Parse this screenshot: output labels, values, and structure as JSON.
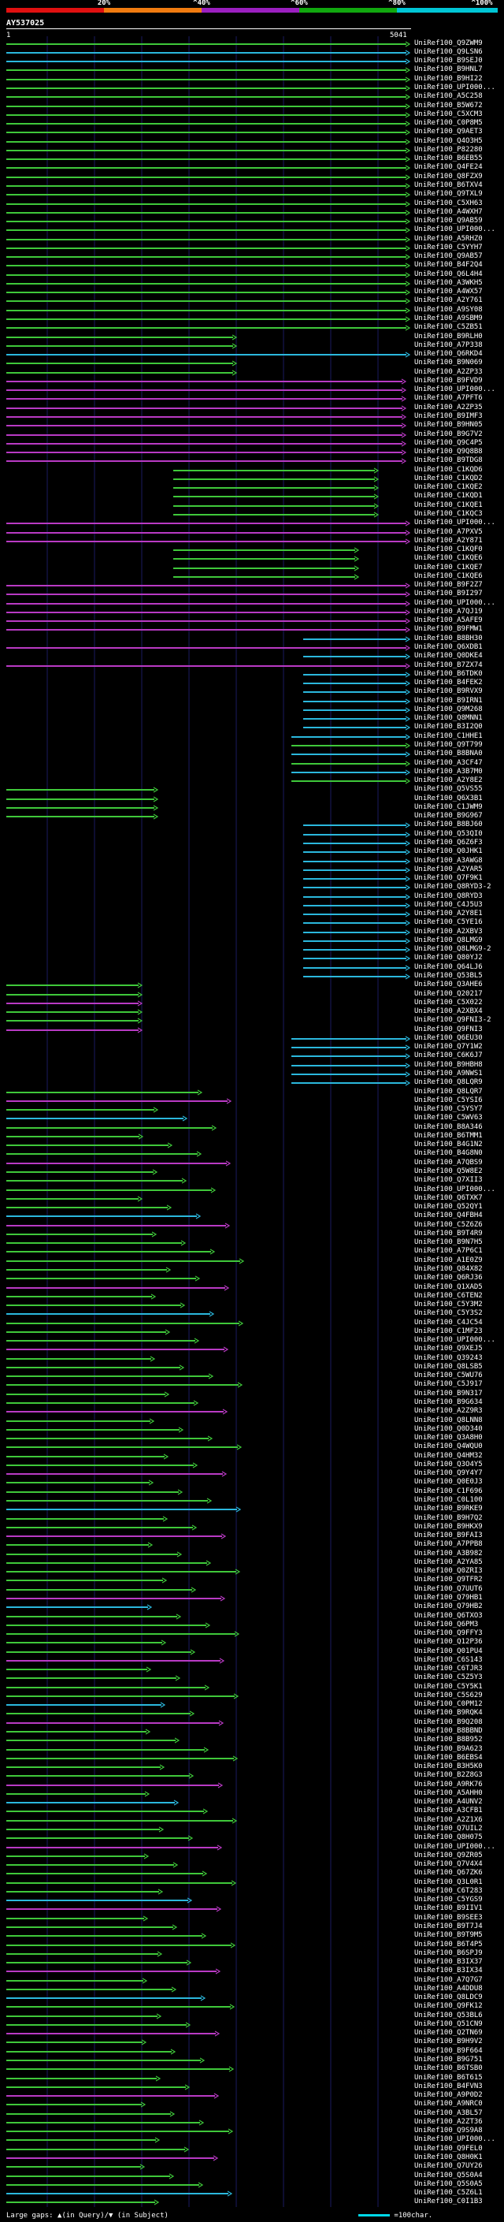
{
  "legend": {
    "labels": [
      "20%",
      "^40%",
      "^60%",
      "^80%",
      "^100%"
    ],
    "colors": [
      "#e01010",
      "#f07b10",
      "#9b1fc0",
      "#11a80f",
      "#00c6d6"
    ]
  },
  "query": {
    "id": "AY537025",
    "start": "1",
    "end": "5041"
  },
  "hit_colors": {
    "green": "#3fc83a",
    "cyan": "#2bb8dd",
    "purple": "#b93ac4"
  },
  "hits": [
    "UniRef100_Q9ZWM9",
    "UniRef100_Q9LSN6",
    "UniRef100_B9SEJ0",
    "UniRef100_B9HNL7",
    "UniRef100_B9HI22",
    "UniRef100_UPI000...",
    "UniRef100_A5C258",
    "UniRef100_B5W672",
    "UniRef100_C5XCM3",
    "UniRef100_C0P8M5",
    "UniRef100_Q9AET3",
    "UniRef100_Q4O3H5",
    "UniRef100_P82280",
    "UniRef100_B6EB55",
    "UniRef100_Q4FE24",
    "UniRef100_Q8FZX9",
    "UniRef100_B6TXV4",
    "UniRef100_Q9TXL9",
    "UniRef100_C5XH63",
    "UniRef100_A4WXH7",
    "UniRef100_Q9AB59",
    "UniRef100_UPI000...",
    "UniRef100_A5RHZ0",
    "UniRef100_C5YYH7",
    "UniRef100_Q9AB57",
    "UniRef100_B4F2Q4",
    "UniRef100_Q6L4H4",
    "UniRef100_A3WKH5",
    "UniRef100_A4WX57",
    "UniRef100_A2Y761",
    "UniRef100_A9SY08",
    "UniRef100_A9SBM9",
    "UniRef100_C5ZB51",
    "UniRef100_B9RLH0",
    "UniRef100_A7P338",
    "UniRef100_Q6RKD4",
    "UniRef100_B9N069",
    "UniRef100_A2ZP33",
    "UniRef100_B9FVD9",
    "UniRef100_UPI000...",
    "UniRef100_A7PFT6",
    "UniRef100_A2ZP35",
    "UniRef100_B9IMF3",
    "UniRef100_B9HN05",
    "UniRef100_B9G7V2",
    "UniRef100_Q9C4P5",
    "UniRef100_Q9Q8B8",
    "UniRef100_B9TDG8",
    "UniRef100_C1KQD6",
    "UniRef100_C1KQD2",
    "UniRef100_C1KQE2",
    "UniRef100_C1KQD1",
    "UniRef100_C1KQE1",
    "UniRef100_C1KQC3",
    "UniRef100_UPI000...",
    "UniRef100_A7PXV5",
    "UniRef100_A2Y871",
    "UniRef100_C1KQF0",
    "UniRef100_C1KQE6",
    "UniRef100_C1KQE7",
    "UniRef100_C1KQE6",
    "UniRef100_B9F2Z7",
    "UniRef100_B9I297",
    "UniRef100_UPI000...",
    "UniRef100_A7QJ19",
    "UniRef100_A5AFE9",
    "UniRef100_B9FMW1",
    "UniRef100_B8BH30",
    "UniRef100_Q6XDB1",
    "UniRef100_Q0DKE4",
    "UniRef100_B7ZX74",
    "UniRef100_B6TDK0",
    "UniRef100_B4FEK2",
    "UniRef100_B9RVX9",
    "UniRef100_B9IRN1",
    "UniRef100_Q9M268",
    "UniRef100_Q8MNN1",
    "UniRef100_B3I2Q0",
    "UniRef100_C1HHE1",
    "UniRef100_Q9T799",
    "UniRef100_B8BNA0",
    "UniRef100_A3CF47",
    "UniRef100_A3B7M0",
    "UniRef100_A2Y8E2",
    "UniRef100_Q5VS55",
    "UniRef100_Q6X3B1",
    "UniRef100_C1JWM9",
    "UniRef100_B9G967",
    "UniRef100_B8BJ60",
    "UniRef100_Q53QI0",
    "UniRef100_Q6Z6F3",
    "UniRef100_Q0JHK1",
    "UniRef100_A3AWG8",
    "UniRef100_A2YAR5",
    "UniRef100_Q7F9K1",
    "UniRef100_Q8RYD3-2",
    "UniRef100_Q8RYD3",
    "UniRef100_C4J5U3",
    "UniRef100_A2Y8E1",
    "UniRef100_C5YE16",
    "UniRef100_A2XBV3",
    "UniRef100_Q8LMG9",
    "UniRef100_Q8LMG9-2",
    "UniRef100_Q80YJ2",
    "UniRef100_Q64LJ6",
    "UniRef100_Q53BL5",
    "UniRef100_Q3AHE6",
    "UniRef100_Q20217",
    "UniRef100_C5X022",
    "UniRef100_A2XBX4",
    "UniRef100_Q9FNI3-2",
    "UniRef100_Q9FNI3",
    "UniRef100_Q6EU30",
    "UniRef100_Q7Y1W2",
    "UniRef100_C6K6J7",
    "UniRef100_B9HBH8",
    "UniRef100_A9NWS1",
    "UniRef100_Q8LQR9",
    "UniRef100_Q8LQR7",
    "UniRef100_C5YSI6",
    "UniRef100_C5YSY7",
    "UniRef100_C5WV63",
    "UniRef100_B8A346",
    "UniRef100_B6TMM1",
    "UniRef100_B4G1N2",
    "UniRef100_B4G8N0",
    "UniRef100_A7QBS9",
    "UniRef100_Q5W8E2",
    "UniRef100_Q7XII3",
    "UniRef100_UPI000...",
    "UniRef100_Q6TXK7",
    "UniRef100_Q52QY1",
    "UniRef100_Q4FBH4",
    "UniRef100_C5Z6Z6",
    "UniRef100_B9T4R9",
    "UniRef100_B9N7H5",
    "UniRef100_A7P6C1",
    "UniRef100_A1E0Z9",
    "UniRef100_Q84X82",
    "UniRef100_Q6RJ36",
    "UniRef100_Q1XAD5",
    "UniRef100_C6TEN2",
    "UniRef100_C5Y3M2",
    "UniRef100_C5Y3S2",
    "UniRef100_C4JC54",
    "UniRef100_C1MF23",
    "UniRef100_UPI000...",
    "UniRef100_Q9XEJ5",
    "UniRef100_Q39243",
    "UniRef100_Q8LSB5",
    "UniRef100_C5WU76",
    "UniRef100_C5J917",
    "UniRef100_B9N317",
    "UniRef100_B9G634",
    "UniRef100_A2Z9R3",
    "UniRef100_Q8LNN8",
    "UniRef100_Q0D340",
    "UniRef100_Q3A8H0",
    "UniRef100_Q4WQU0",
    "UniRef100_Q4HM32",
    "UniRef100_Q3O4Y5",
    "UniRef100_Q9Y4Y7",
    "UniRef100_Q0E0J3",
    "UniRef100_C1F696",
    "UniRef100_C0L100",
    "UniRef100_B9RKE9",
    "UniRef100_B9H7Q2",
    "UniRef100_B9HKX9",
    "UniRef100_B9FAI3",
    "UniRef100_A7PPB8",
    "UniRef100_A3B982",
    "UniRef100_A2YA85",
    "UniRef100_Q0ZRI3",
    "UniRef100_Q9TFR2",
    "UniRef100_Q7UUT6",
    "UniRef100_Q79HB1",
    "UniRef100_Q79HB2",
    "UniRef100_Q6TXO3",
    "UniRef100_Q6PM3",
    "UniRef100_Q9FFY3",
    "UniRef100_Q12P36",
    "UniRef100_Q01PU4",
    "UniRef100_C6S143",
    "UniRef100_C6TJR3",
    "UniRef100_C5Z5Y3",
    "UniRef100_C5Y5K1",
    "UniRef100_C5S629",
    "UniRef100_C0PM12",
    "UniRef100_B9RQK4",
    "UniRef100_B9Q208",
    "UniRef100_B8BBND",
    "UniRef100_B8B952",
    "UniRef100_B9A623",
    "UniRef100_B6EBS4",
    "UniRef100_B3H5K0",
    "UniRef100_B2Z8G3",
    "UniRef100_A9RK76",
    "UniRef100_A5AHH0",
    "UniRef100_A4UNV2",
    "UniRef100_A3CFB1",
    "UniRef100_A2Z1X6",
    "UniRef100_Q7UIL2",
    "UniRef100_Q8H075",
    "UniRef100_UPI000...",
    "UniRef100_Q9ZR05",
    "UniRef100_Q7V4X4",
    "UniRef100_Q67ZK6",
    "UniRef100_Q3L0R1",
    "UniRef100_C6T283",
    "UniRef100_C5YGS9",
    "UniRef100_B9IIV1",
    "UniRef100_B9SEE3",
    "UniRef100_B9T7J4",
    "UniRef100_B9T9M5",
    "UniRef100_B6T4P5",
    "UniRef100_B6SPJ9",
    "UniRef100_B3IX37",
    "UniRef100_B3IX34",
    "UniRef100_A7Q7G7",
    "UniRef100_A4DDU8",
    "UniRef100_Q8LDC9",
    "UniRef100_Q9FK12",
    "UniRef100_Q53BL6",
    "UniRef100_Q51CN9",
    "UniRef100_Q2TN69",
    "UniRef100_B9H9V2",
    "UniRef100_B9F664",
    "UniRef100_B9G751",
    "UniRef100_B6TSB0",
    "UniRef100_B6T615",
    "UniRef100_B4FVN3",
    "UniRef100_A9P0D2",
    "UniRef100_A9NRC0",
    "UniRef100_A3BL57",
    "UniRef100_A2ZT36",
    "UniRef100_Q9S9A8",
    "UniRef100_UPI000...",
    "UniRef100_Q9FEL0",
    "UniRef100_Q8H0K1",
    "UniRef100_Q7UY26",
    "UniRef100_Q5S0A4",
    "UniRef100_Q5S0A5",
    "UniRef100_C5Z6L1",
    "UniRef100_C0I1B3"
  ],
  "footer": {
    "gaps": "Large gaps: ▲(in Query)/▼ (in Subject)",
    "scale": "=100char."
  }
}
